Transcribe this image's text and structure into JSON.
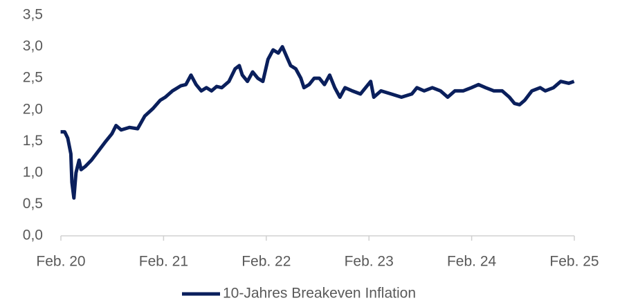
{
  "chart_data": {
    "type": "line",
    "series": [
      {
        "name": "10-Jahres Breakeven Inflation",
        "color": "#0a1f5c",
        "x": [
          2020.08,
          2020.12,
          2020.15,
          2020.18,
          2020.19,
          2020.21,
          2020.23,
          2020.26,
          2020.28,
          2020.32,
          2020.38,
          2020.45,
          2020.52,
          2020.58,
          2020.62,
          2020.67,
          2020.75,
          2020.83,
          2020.9,
          2020.98,
          2021.05,
          2021.1,
          2021.17,
          2021.25,
          2021.3,
          2021.35,
          2021.4,
          2021.45,
          2021.5,
          2021.55,
          2021.6,
          2021.65,
          2021.72,
          2021.78,
          2021.82,
          2021.85,
          2021.9,
          2021.95,
          2022.0,
          2022.05,
          2022.1,
          2022.15,
          2022.2,
          2022.24,
          2022.28,
          2022.32,
          2022.37,
          2022.42,
          2022.45,
          2022.5,
          2022.55,
          2022.6,
          2022.65,
          2022.7,
          2022.75,
          2022.8,
          2022.85,
          2022.92,
          2023.0,
          2023.05,
          2023.1,
          2023.13,
          2023.2,
          2023.3,
          2023.4,
          2023.5,
          2023.55,
          2023.62,
          2023.7,
          2023.78,
          2023.85,
          2023.92,
          2024.0,
          2024.08,
          2024.15,
          2024.22,
          2024.3,
          2024.38,
          2024.45,
          2024.5,
          2024.55,
          2024.6,
          2024.67,
          2024.75,
          2024.8,
          2024.88,
          2024.95,
          2025.03,
          2025.08
        ],
        "values": [
          1.65,
          1.65,
          1.55,
          1.3,
          0.85,
          0.6,
          1.0,
          1.2,
          1.05,
          1.1,
          1.2,
          1.35,
          1.5,
          1.62,
          1.75,
          1.68,
          1.72,
          1.7,
          1.9,
          2.02,
          2.15,
          2.2,
          2.3,
          2.38,
          2.4,
          2.55,
          2.4,
          2.3,
          2.35,
          2.3,
          2.37,
          2.35,
          2.45,
          2.65,
          2.7,
          2.55,
          2.45,
          2.6,
          2.5,
          2.45,
          2.8,
          2.95,
          2.9,
          3.0,
          2.85,
          2.7,
          2.65,
          2.5,
          2.35,
          2.4,
          2.5,
          2.5,
          2.4,
          2.55,
          2.35,
          2.2,
          2.35,
          2.3,
          2.25,
          2.35,
          2.45,
          2.2,
          2.3,
          2.25,
          2.2,
          2.25,
          2.35,
          2.3,
          2.35,
          2.3,
          2.2,
          2.3,
          2.3,
          2.35,
          2.4,
          2.35,
          2.3,
          2.3,
          2.2,
          2.1,
          2.08,
          2.15,
          2.3,
          2.35,
          2.3,
          2.35,
          2.45,
          2.42,
          2.45
        ]
      }
    ],
    "xlim": [
      2020.083,
      2025.083
    ],
    "xticks": [
      {
        "value": 2020.083,
        "label": "Feb. 20"
      },
      {
        "value": 2021.083,
        "label": "Feb. 21"
      },
      {
        "value": 2022.083,
        "label": "Feb. 22"
      },
      {
        "value": 2023.083,
        "label": "Feb. 23"
      },
      {
        "value": 2024.083,
        "label": "Feb. 24"
      },
      {
        "value": 2025.083,
        "label": "Feb. 25"
      }
    ],
    "ylim": [
      0,
      3.5
    ],
    "yticks": [
      {
        "value": 0,
        "label": "0,0"
      },
      {
        "value": 0.5,
        "label": "0,5"
      },
      {
        "value": 1,
        "label": "1,0"
      },
      {
        "value": 1.5,
        "label": "1,5"
      },
      {
        "value": 2,
        "label": "2,0"
      },
      {
        "value": 2.5,
        "label": "2,5"
      },
      {
        "value": 3,
        "label": "3,0"
      },
      {
        "value": 3.5,
        "label": "3,5"
      }
    ],
    "legend": "bottom"
  }
}
